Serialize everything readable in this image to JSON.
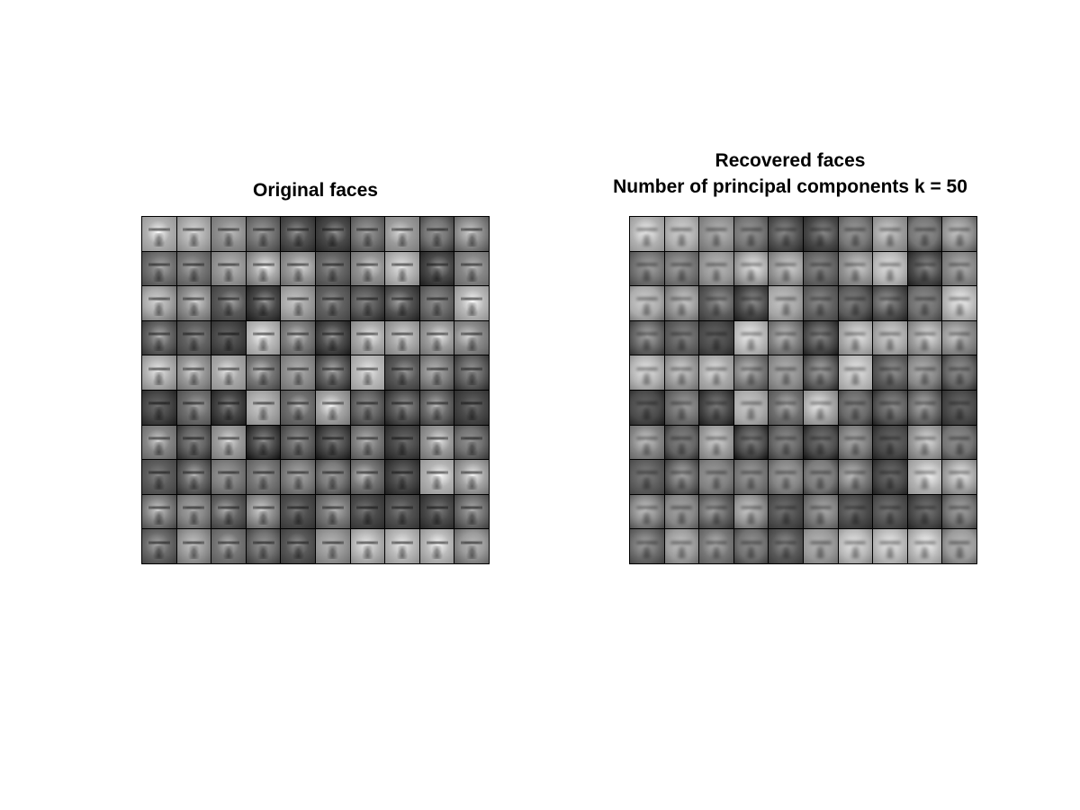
{
  "figure": {
    "left_panel": {
      "title": "Original faces",
      "rows": 10,
      "cols": 10,
      "content": "face-image-grid"
    },
    "right_panel": {
      "title_line1": "Recovered faces",
      "title_line2": "Number of principal components k = 50",
      "rows": 10,
      "cols": 10,
      "content": "face-image-grid"
    },
    "colors": {
      "background": "#ffffff",
      "text": "#000000",
      "grid_border": "#000000"
    }
  }
}
